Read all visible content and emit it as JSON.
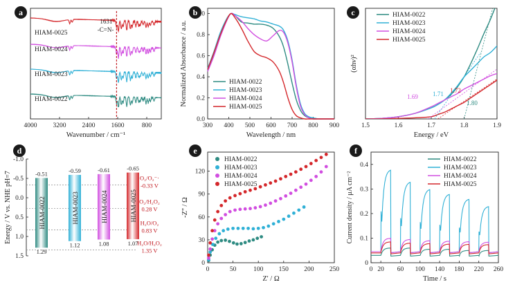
{
  "colors": {
    "c1": "#2e8b82",
    "c2": "#2fb0d6",
    "c3": "#d14ee0",
    "c4": "#d4272b"
  },
  "series_names": [
    "HIAM-0022",
    "HIAM-0023",
    "HIAM-0024",
    "HIAM-0025"
  ],
  "chart_data": [
    {
      "id": "a",
      "panel_label": "a",
      "type": "line",
      "xlabel": "Wavenumber / cm⁻¹",
      "ylabel": "",
      "xlim": [
        4000,
        400
      ],
      "xticks": [
        4000,
        3200,
        2400,
        1600,
        800
      ],
      "marker": {
        "x": 1631,
        "label_1": "1631",
        "label_2": "-C=N-"
      },
      "series": [
        {
          "name": "HIAM-0025",
          "color": "#d4272b"
        },
        {
          "name": "HIAM-0024",
          "color": "#d14ee0"
        },
        {
          "name": "HIAM-0023",
          "color": "#2fb0d6"
        },
        {
          "name": "HIAM-0022",
          "color": "#2e8b82"
        }
      ]
    },
    {
      "id": "b",
      "panel_label": "b",
      "type": "line",
      "xlabel": "Wavelength / nm",
      "ylabel": "Normalized Absorbance / a.u.",
      "xlim": [
        300,
        900
      ],
      "ylim": [
        0,
        1.05
      ],
      "xticks": [
        300,
        400,
        500,
        600,
        700,
        800,
        900
      ],
      "yticks": [
        0.0,
        0.2,
        0.4,
        0.6,
        0.8,
        1.0
      ],
      "ytick_labels": [
        "0.0",
        "0.2",
        "0.4",
        "0.6",
        "0.8",
        "1.0"
      ],
      "x": [
        300,
        330,
        360,
        390,
        410,
        430,
        460,
        490,
        520,
        550,
        580,
        610,
        640,
        660,
        680,
        700,
        720,
        740,
        760,
        780,
        800,
        830,
        860,
        900
      ],
      "series": [
        {
          "name": "HIAM-0022",
          "color": "#2e8b82",
          "values": [
            0.46,
            0.62,
            0.8,
            0.94,
            1.0,
            0.98,
            0.92,
            0.91,
            0.9,
            0.9,
            0.89,
            0.86,
            0.78,
            0.68,
            0.52,
            0.34,
            0.18,
            0.08,
            0.03,
            0.01,
            0.0,
            0.0,
            0.0,
            0.0
          ]
        },
        {
          "name": "HIAM-0023",
          "color": "#2fb0d6",
          "values": [
            0.48,
            0.64,
            0.82,
            0.95,
            1.0,
            0.99,
            0.97,
            0.96,
            0.95,
            0.93,
            0.92,
            0.9,
            0.88,
            0.84,
            0.74,
            0.56,
            0.32,
            0.14,
            0.05,
            0.02,
            0.01,
            0.0,
            0.0,
            0.0
          ]
        },
        {
          "name": "HIAM-0024",
          "color": "#d14ee0",
          "values": [
            0.45,
            0.6,
            0.78,
            0.93,
            1.0,
            0.98,
            0.93,
            0.86,
            0.8,
            0.76,
            0.74,
            0.79,
            0.84,
            0.82,
            0.72,
            0.54,
            0.3,
            0.12,
            0.04,
            0.01,
            0.0,
            0.0,
            0.0,
            0.0
          ]
        },
        {
          "name": "HIAM-0025",
          "color": "#d4272b",
          "values": [
            0.47,
            0.63,
            0.8,
            0.94,
            1.0,
            0.96,
            0.86,
            0.74,
            0.64,
            0.6,
            0.58,
            0.54,
            0.45,
            0.34,
            0.2,
            0.09,
            0.03,
            0.01,
            0.0,
            0.0,
            0.0,
            0.0,
            0.0,
            0.0
          ]
        }
      ]
    },
    {
      "id": "c",
      "panel_label": "c",
      "type": "line",
      "xlabel": "Energy / eV",
      "ylabel": "(αhν)²",
      "xlim": [
        1.5,
        1.9
      ],
      "ylim": [
        0,
        1
      ],
      "xticks": [
        1.5,
        1.6,
        1.7,
        1.8,
        1.9
      ],
      "xtick_labels": [
        "1.5",
        "1.6",
        "1.7",
        "1.8",
        "1.9"
      ],
      "x": [
        1.5,
        1.55,
        1.6,
        1.65,
        1.7,
        1.72,
        1.74,
        1.76,
        1.78,
        1.8,
        1.82,
        1.84,
        1.86,
        1.88,
        1.9
      ],
      "series": [
        {
          "name": "HIAM-0022",
          "color": "#2e8b82",
          "values": [
            0.0,
            0.005,
            0.02,
            0.05,
            0.1,
            0.13,
            0.17,
            0.22,
            0.29,
            0.38,
            0.5,
            0.63,
            0.77,
            0.9,
            1.05
          ]
        },
        {
          "name": "HIAM-0023",
          "color": "#2fb0d6",
          "values": [
            0.0,
            0.005,
            0.02,
            0.05,
            0.1,
            0.13,
            0.17,
            0.23,
            0.3,
            0.38,
            0.44,
            0.5,
            0.56,
            0.6,
            0.66
          ]
        },
        {
          "name": "HIAM-0024",
          "color": "#d14ee0",
          "values": [
            0.0,
            0.005,
            0.02,
            0.05,
            0.11,
            0.14,
            0.17,
            0.2,
            0.23,
            0.27,
            0.3,
            0.33,
            0.36,
            0.39,
            0.41
          ]
        },
        {
          "name": "HIAM-0025",
          "color": "#d4272b",
          "values": [
            0.0,
            0.0,
            0.005,
            0.01,
            0.02,
            0.04,
            0.06,
            0.09,
            0.12,
            0.15,
            0.19,
            0.23,
            0.27,
            0.31,
            0.35
          ]
        }
      ],
      "annotations": [
        {
          "text": "1.69",
          "x": 1.69,
          "color": "#d14ee0"
        },
        {
          "text": "1.71",
          "x": 1.71,
          "color": "#2fb0d6"
        },
        {
          "text": "1.72",
          "x": 1.72,
          "color": "#d4272b"
        },
        {
          "text": "1.80",
          "x": 1.8,
          "color": "#2e8b82"
        }
      ]
    },
    {
      "id": "d",
      "panel_label": "d",
      "type": "bar",
      "ylabel": "Energy / V vs. NHE pH=7",
      "ylim": [
        1.5,
        -1.0
      ],
      "yticks": [
        -1.0,
        -0.5,
        0.0,
        0.5,
        1.0,
        1.5
      ],
      "ytick_labels": [
        "-1.0",
        "-0.5",
        "0.0",
        "0.5",
        "1.0",
        "1.5"
      ],
      "categories": [
        "HIAM-0022",
        "HIAM-0023",
        "HIAM-0024",
        "HIAM-0025"
      ],
      "lumo": [
        -0.51,
        -0.59,
        -0.61,
        -0.65
      ],
      "homo": [
        1.29,
        1.12,
        1.08,
        1.07
      ],
      "lumo_labels": [
        "-0.51",
        "-0.59",
        "-0.61",
        "-0.65"
      ],
      "homo_labels": [
        "1.29",
        "1.12",
        "1.08",
        "1.07"
      ],
      "levels": [
        {
          "y": -0.33,
          "line1": "O₂/O₂⁻·",
          "line2": "-0.33 V"
        },
        {
          "y": 0.28,
          "line1": "O₂/H₂O₂",
          "line2": "0.28 V"
        },
        {
          "y": 0.83,
          "line1": "H₂O/O₂",
          "line2": "0.83 V"
        },
        {
          "y": 1.35,
          "line1": "H₂O/H₂O₂",
          "line2": "1.35 V"
        }
      ]
    },
    {
      "id": "e",
      "panel_label": "e",
      "type": "scatter",
      "xlabel": "Z' / Ω",
      "ylabel": "-Z'' / Ω",
      "xlim": [
        0,
        250
      ],
      "ylim": [
        0,
        145
      ],
      "xticks": [
        0,
        50,
        100,
        150,
        200,
        250
      ],
      "yticks": [
        0,
        30,
        60,
        90,
        120
      ],
      "series": [
        {
          "name": "HIAM-0022",
          "color": "#2e8b82",
          "points": [
            [
              2,
              3
            ],
            [
              5,
              10
            ],
            [
              9,
              17
            ],
            [
              14,
              23
            ],
            [
              20,
              27
            ],
            [
              27,
              29
            ],
            [
              35,
              29.5
            ],
            [
              43,
              28
            ],
            [
              51,
              26
            ],
            [
              58,
              24.5
            ],
            [
              66,
              25
            ],
            [
              74,
              26.5
            ],
            [
              82,
              28.5
            ],
            [
              90,
              30
            ],
            [
              98,
              32
            ],
            [
              106,
              34
            ]
          ]
        },
        {
          "name": "HIAM-0023",
          "color": "#2fb0d6",
          "points": [
            [
              2,
              4
            ],
            [
              5,
              14
            ],
            [
              10,
              24
            ],
            [
              16,
              32
            ],
            [
              23,
              38
            ],
            [
              31,
              42
            ],
            [
              40,
              44
            ],
            [
              50,
              45
            ],
            [
              60,
              45
            ],
            [
              70,
              45
            ],
            [
              80,
              45
            ],
            [
              90,
              44.5
            ],
            [
              100,
              45
            ],
            [
              110,
              46
            ],
            [
              120,
              48
            ],
            [
              130,
              51
            ],
            [
              140,
              54
            ],
            [
              150,
              57
            ],
            [
              160,
              61
            ],
            [
              170,
              65
            ],
            [
              180,
              69
            ],
            [
              190,
              73
            ]
          ]
        },
        {
          "name": "HIAM-0024",
          "color": "#d14ee0",
          "points": [
            [
              2,
              6
            ],
            [
              5,
              18
            ],
            [
              9,
              31
            ],
            [
              14,
              42
            ],
            [
              20,
              51
            ],
            [
              27,
              58
            ],
            [
              35,
              63
            ],
            [
              44,
              67
            ],
            [
              54,
              69
            ],
            [
              64,
              70
            ],
            [
              74,
              70.5
            ],
            [
              84,
              71
            ],
            [
              94,
              72
            ],
            [
              104,
              73.5
            ],
            [
              114,
              75.5
            ],
            [
              124,
              78
            ],
            [
              134,
              81
            ],
            [
              144,
              84
            ],
            [
              154,
              87.5
            ],
            [
              164,
              91
            ],
            [
              174,
              95
            ],
            [
              184,
              99
            ],
            [
              194,
              103
            ],
            [
              204,
              108
            ],
            [
              214,
              113
            ],
            [
              224,
              119
            ],
            [
              234,
              126
            ]
          ]
        },
        {
          "name": "HIAM-0025",
          "color": "#d4272b",
          "points": [
            [
              2,
              10
            ],
            [
              5,
              26
            ],
            [
              9,
              42
            ],
            [
              14,
              56
            ],
            [
              20,
              67
            ],
            [
              27,
              75
            ],
            [
              35,
              81
            ],
            [
              44,
              85
            ],
            [
              54,
              88
            ],
            [
              64,
              90.5
            ],
            [
              74,
              93
            ],
            [
              84,
              95
            ],
            [
              94,
              97
            ],
            [
              104,
              99.5
            ],
            [
              114,
              102
            ],
            [
              124,
              104.5
            ],
            [
              134,
              107
            ],
            [
              144,
              110
            ],
            [
              154,
              113
            ],
            [
              164,
              116
            ],
            [
              174,
              119
            ],
            [
              184,
              122.5
            ],
            [
              194,
              126
            ],
            [
              204,
              130
            ],
            [
              214,
              134
            ],
            [
              224,
              138
            ],
            [
              234,
              142
            ]
          ]
        }
      ]
    },
    {
      "id": "f",
      "panel_label": "f",
      "type": "line",
      "xlabel": "Time / s",
      "ylabel": "Current density / μA cm⁻²",
      "xlim": [
        0,
        260
      ],
      "ylim": [
        0,
        0.45
      ],
      "xticks": [
        0,
        20,
        60,
        100,
        140,
        180,
        220,
        260
      ],
      "yticks": [
        0.0,
        0.1,
        0.2,
        0.3,
        0.4
      ],
      "pulses": [
        [
          20,
          40
        ],
        [
          60,
          80
        ],
        [
          100,
          120
        ],
        [
          140,
          160
        ],
        [
          180,
          200
        ],
        [
          220,
          240
        ]
      ],
      "series": [
        {
          "name": "HIAM-0022",
          "color": "#2e8b82",
          "base": 0.03,
          "peaks": [
            0.06,
            0.06,
            0.055,
            0.055,
            0.05,
            0.05
          ]
        },
        {
          "name": "HIAM-0023",
          "color": "#2fb0d6",
          "base": 0.045,
          "peaks": [
            0.38,
            0.33,
            0.3,
            0.28,
            0.26,
            0.23
          ]
        },
        {
          "name": "HIAM-0024",
          "color": "#d14ee0",
          "base": 0.045,
          "peaks": [
            0.1,
            0.095,
            0.09,
            0.088,
            0.086,
            0.084
          ]
        },
        {
          "name": "HIAM-0025",
          "color": "#d4272b",
          "base": 0.04,
          "peaks": [
            0.085,
            0.08,
            0.078,
            0.076,
            0.075,
            0.074
          ]
        }
      ]
    }
  ]
}
